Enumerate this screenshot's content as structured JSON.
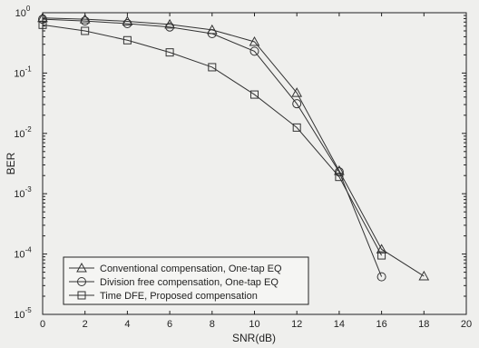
{
  "chart_data": {
    "type": "line",
    "title": "",
    "xlabel": "SNR(dB)",
    "ylabel": "BER",
    "xlim": [
      0,
      20
    ],
    "ylim": [
      1e-05,
      1
    ],
    "yscale": "log",
    "grid": false,
    "legend_position": "bottom-left",
    "x_ticks": [
      0,
      2,
      4,
      6,
      8,
      10,
      12,
      14,
      16,
      18,
      20
    ],
    "y_ticks": [
      {
        "value": 1e-05,
        "base": "10",
        "exp": "-5"
      },
      {
        "value": 0.0001,
        "base": "10",
        "exp": "-4"
      },
      {
        "value": 0.001,
        "base": "10",
        "exp": "-3"
      },
      {
        "value": 0.01,
        "base": "10",
        "exp": "-2"
      },
      {
        "value": 0.1,
        "base": "10",
        "exp": "-1"
      },
      {
        "value": 1,
        "base": "10",
        "exp": "0"
      }
    ],
    "series": [
      {
        "name": "Conventional compensation, One-tap EQ",
        "marker": "triangle",
        "x": [
          0,
          2,
          4,
          6,
          8,
          10,
          12,
          14,
          16,
          18
        ],
        "y": [
          0.82,
          0.78,
          0.72,
          0.64,
          0.52,
          0.33,
          0.047,
          0.0024,
          0.00012,
          4.3e-05
        ]
      },
      {
        "name": "Division free compensation, One-tap EQ",
        "marker": "circle",
        "x": [
          0,
          2,
          4,
          6,
          8,
          10,
          12,
          14,
          16
        ],
        "y": [
          0.78,
          0.73,
          0.66,
          0.58,
          0.45,
          0.23,
          0.031,
          0.0023,
          4.2e-05
        ]
      },
      {
        "name": "Time DFE, Proposed compensation",
        "marker": "square",
        "x": [
          0,
          2,
          4,
          6,
          8,
          10,
          12,
          14,
          16
        ],
        "y": [
          0.63,
          0.5,
          0.35,
          0.22,
          0.125,
          0.044,
          0.0125,
          0.0019,
          9.5e-05
        ]
      }
    ]
  }
}
